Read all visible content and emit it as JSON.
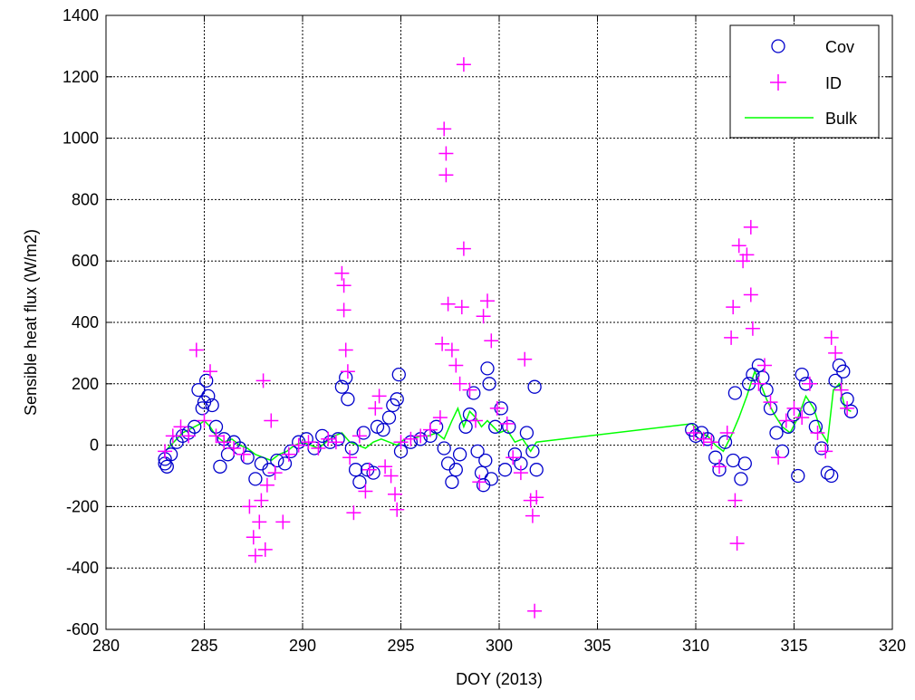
{
  "chart_data": {
    "type": "scatter",
    "xlabel": "DOY (2013)",
    "ylabel": "Sensible heat flux (W/m2)",
    "xlim": [
      280,
      320
    ],
    "ylim": [
      -600,
      1400
    ],
    "xticks": [
      280,
      285,
      290,
      295,
      300,
      305,
      310,
      315,
      320
    ],
    "yticks": [
      -600,
      -400,
      -200,
      0,
      200,
      400,
      600,
      800,
      1000,
      1200,
      1400
    ],
    "grid": true,
    "legend_position": "top-right",
    "series": [
      {
        "name": "Cov",
        "marker": "circle",
        "color": "#0000cc",
        "points": [
          [
            283.0,
            -60
          ],
          [
            283.0,
            -45
          ],
          [
            283.1,
            -70
          ],
          [
            283.3,
            -30
          ],
          [
            283.6,
            10
          ],
          [
            283.9,
            30
          ],
          [
            284.2,
            40
          ],
          [
            284.5,
            60
          ],
          [
            284.7,
            180
          ],
          [
            284.9,
            120
          ],
          [
            285.0,
            140
          ],
          [
            285.1,
            210
          ],
          [
            285.2,
            160
          ],
          [
            285.4,
            130
          ],
          [
            285.6,
            60
          ],
          [
            285.8,
            -70
          ],
          [
            286.0,
            20
          ],
          [
            286.2,
            -30
          ],
          [
            286.5,
            10
          ],
          [
            286.8,
            -10
          ],
          [
            287.2,
            -40
          ],
          [
            287.6,
            -110
          ],
          [
            287.9,
            -60
          ],
          [
            288.3,
            -80
          ],
          [
            288.7,
            -50
          ],
          [
            289.1,
            -60
          ],
          [
            289.4,
            -20
          ],
          [
            289.8,
            10
          ],
          [
            290.2,
            20
          ],
          [
            290.6,
            -10
          ],
          [
            291.0,
            30
          ],
          [
            291.4,
            10
          ],
          [
            291.8,
            20
          ],
          [
            292.0,
            190
          ],
          [
            292.2,
            220
          ],
          [
            292.3,
            150
          ],
          [
            292.5,
            -10
          ],
          [
            292.7,
            -80
          ],
          [
            292.9,
            -120
          ],
          [
            293.1,
            40
          ],
          [
            293.3,
            -80
          ],
          [
            293.6,
            -90
          ],
          [
            293.8,
            60
          ],
          [
            294.1,
            50
          ],
          [
            294.4,
            90
          ],
          [
            294.6,
            130
          ],
          [
            294.8,
            150
          ],
          [
            294.9,
            230
          ],
          [
            295.0,
            -20
          ],
          [
            295.5,
            10
          ],
          [
            296.0,
            20
          ],
          [
            296.5,
            30
          ],
          [
            296.8,
            60
          ],
          [
            297.2,
            -10
          ],
          [
            297.4,
            -60
          ],
          [
            297.6,
            -120
          ],
          [
            297.8,
            -80
          ],
          [
            298.0,
            -30
          ],
          [
            298.3,
            60
          ],
          [
            298.5,
            100
          ],
          [
            298.7,
            170
          ],
          [
            298.9,
            -20
          ],
          [
            299.1,
            -90
          ],
          [
            299.2,
            -130
          ],
          [
            299.3,
            -50
          ],
          [
            299.4,
            250
          ],
          [
            299.5,
            200
          ],
          [
            299.6,
            -110
          ],
          [
            299.8,
            60
          ],
          [
            300.1,
            120
          ],
          [
            300.3,
            -80
          ],
          [
            300.5,
            60
          ],
          [
            300.8,
            -30
          ],
          [
            301.1,
            -60
          ],
          [
            301.4,
            40
          ],
          [
            301.7,
            -20
          ],
          [
            301.8,
            190
          ],
          [
            301.9,
            -80
          ],
          [
            309.8,
            50
          ],
          [
            310.0,
            30
          ],
          [
            310.3,
            40
          ],
          [
            310.6,
            20
          ],
          [
            311.0,
            -40
          ],
          [
            311.2,
            -80
          ],
          [
            311.5,
            10
          ],
          [
            311.9,
            -50
          ],
          [
            312.0,
            170
          ],
          [
            312.3,
            -110
          ],
          [
            312.5,
            -60
          ],
          [
            312.7,
            200
          ],
          [
            312.9,
            230
          ],
          [
            313.2,
            260
          ],
          [
            313.4,
            220
          ],
          [
            313.6,
            180
          ],
          [
            313.8,
            120
          ],
          [
            314.1,
            40
          ],
          [
            314.4,
            -20
          ],
          [
            314.7,
            60
          ],
          [
            315.0,
            100
          ],
          [
            315.2,
            -100
          ],
          [
            315.4,
            230
          ],
          [
            315.6,
            200
          ],
          [
            315.8,
            120
          ],
          [
            316.1,
            60
          ],
          [
            316.4,
            -10
          ],
          [
            316.7,
            -90
          ],
          [
            316.9,
            -100
          ],
          [
            317.1,
            210
          ],
          [
            317.3,
            260
          ],
          [
            317.5,
            240
          ],
          [
            317.7,
            150
          ],
          [
            317.9,
            110
          ]
        ]
      },
      {
        "name": "ID",
        "marker": "plus",
        "color": "#ff00ff",
        "points": [
          [
            283.0,
            -20
          ],
          [
            283.4,
            30
          ],
          [
            283.8,
            60
          ],
          [
            284.2,
            30
          ],
          [
            284.6,
            310
          ],
          [
            285.0,
            80
          ],
          [
            285.3,
            240
          ],
          [
            285.6,
            30
          ],
          [
            286.0,
            10
          ],
          [
            286.5,
            -10
          ],
          [
            287.0,
            -30
          ],
          [
            287.3,
            -200
          ],
          [
            287.5,
            -300
          ],
          [
            287.6,
            -360
          ],
          [
            287.8,
            -250
          ],
          [
            287.9,
            -180
          ],
          [
            288.0,
            210
          ],
          [
            288.1,
            -340
          ],
          [
            288.2,
            -130
          ],
          [
            288.4,
            80
          ],
          [
            288.6,
            -90
          ],
          [
            289.0,
            -250
          ],
          [
            289.3,
            -30
          ],
          [
            289.8,
            0
          ],
          [
            290.3,
            10
          ],
          [
            290.8,
            -10
          ],
          [
            291.3,
            20
          ],
          [
            291.7,
            10
          ],
          [
            292.0,
            560
          ],
          [
            292.1,
            520
          ],
          [
            292.1,
            440
          ],
          [
            292.2,
            310
          ],
          [
            292.3,
            240
          ],
          [
            292.4,
            -40
          ],
          [
            292.6,
            -220
          ],
          [
            292.9,
            30
          ],
          [
            293.2,
            -150
          ],
          [
            293.4,
            -80
          ],
          [
            293.7,
            120
          ],
          [
            293.9,
            160
          ],
          [
            294.2,
            -70
          ],
          [
            294.5,
            -100
          ],
          [
            294.7,
            -160
          ],
          [
            294.8,
            -210
          ],
          [
            295.0,
            10
          ],
          [
            295.5,
            20
          ],
          [
            296.0,
            30
          ],
          [
            296.5,
            50
          ],
          [
            297.0,
            90
          ],
          [
            297.1,
            330
          ],
          [
            297.2,
            1030
          ],
          [
            297.3,
            950
          ],
          [
            297.3,
            880
          ],
          [
            297.4,
            460
          ],
          [
            297.6,
            310
          ],
          [
            297.8,
            260
          ],
          [
            298.0,
            200
          ],
          [
            298.1,
            450
          ],
          [
            298.2,
            1240
          ],
          [
            298.2,
            640
          ],
          [
            298.5,
            180
          ],
          [
            298.8,
            80
          ],
          [
            299.0,
            -120
          ],
          [
            299.2,
            420
          ],
          [
            299.4,
            470
          ],
          [
            299.6,
            340
          ],
          [
            299.9,
            120
          ],
          [
            300.4,
            70
          ],
          [
            300.7,
            -40
          ],
          [
            301.1,
            -90
          ],
          [
            301.3,
            280
          ],
          [
            301.6,
            -180
          ],
          [
            301.7,
            -230
          ],
          [
            301.8,
            -540
          ],
          [
            301.9,
            -170
          ],
          [
            309.9,
            40
          ],
          [
            310.4,
            20
          ],
          [
            310.8,
            10
          ],
          [
            311.2,
            -70
          ],
          [
            311.6,
            40
          ],
          [
            311.8,
            350
          ],
          [
            311.9,
            450
          ],
          [
            312.0,
            -180
          ],
          [
            312.1,
            -320
          ],
          [
            312.2,
            650
          ],
          [
            312.4,
            600
          ],
          [
            312.6,
            620
          ],
          [
            312.8,
            710
          ],
          [
            312.8,
            490
          ],
          [
            312.9,
            380
          ],
          [
            313.2,
            200
          ],
          [
            313.5,
            260
          ],
          [
            313.8,
            140
          ],
          [
            314.2,
            -40
          ],
          [
            314.6,
            80
          ],
          [
            315.0,
            120
          ],
          [
            315.4,
            90
          ],
          [
            315.8,
            200
          ],
          [
            316.2,
            40
          ],
          [
            316.6,
            -20
          ],
          [
            316.9,
            350
          ],
          [
            317.1,
            300
          ],
          [
            317.4,
            180
          ],
          [
            317.7,
            120
          ]
        ]
      },
      {
        "name": "Bulk",
        "marker": "line",
        "color": "#00ff00",
        "points": [
          [
            283.0,
            -20
          ],
          [
            283.3,
            0
          ],
          [
            283.6,
            20
          ],
          [
            283.9,
            40
          ],
          [
            284.2,
            50
          ],
          [
            284.5,
            60
          ],
          [
            284.8,
            70
          ],
          [
            285.0,
            80
          ],
          [
            285.3,
            60
          ],
          [
            285.6,
            30
          ],
          [
            286.0,
            10
          ],
          [
            286.4,
            20
          ],
          [
            286.8,
            0
          ],
          [
            287.2,
            -10
          ],
          [
            287.6,
            -30
          ],
          [
            288.0,
            -40
          ],
          [
            288.4,
            -50
          ],
          [
            288.8,
            -30
          ],
          [
            289.2,
            -20
          ],
          [
            289.6,
            0
          ],
          [
            290.0,
            10
          ],
          [
            290.4,
            0
          ],
          [
            290.8,
            -10
          ],
          [
            291.2,
            10
          ],
          [
            291.6,
            30
          ],
          [
            292.0,
            40
          ],
          [
            292.4,
            10
          ],
          [
            292.8,
            0
          ],
          [
            293.2,
            -10
          ],
          [
            293.6,
            10
          ],
          [
            294.0,
            20
          ],
          [
            294.4,
            10
          ],
          [
            294.8,
            0
          ],
          [
            295.2,
            20
          ],
          [
            295.6,
            20
          ],
          [
            296.0,
            30
          ],
          [
            296.4,
            30
          ],
          [
            296.8,
            40
          ],
          [
            297.2,
            20
          ],
          [
            297.6,
            80
          ],
          [
            297.9,
            120
          ],
          [
            298.2,
            60
          ],
          [
            298.5,
            110
          ],
          [
            298.8,
            90
          ],
          [
            299.1,
            60
          ],
          [
            299.4,
            80
          ],
          [
            299.7,
            60
          ],
          [
            300.0,
            40
          ],
          [
            300.4,
            50
          ],
          [
            300.8,
            10
          ],
          [
            301.2,
            20
          ],
          [
            301.6,
            -20
          ],
          [
            301.9,
            10
          ],
          [
            309.8,
            70
          ],
          [
            310.2,
            40
          ],
          [
            310.6,
            30
          ],
          [
            311.0,
            0
          ],
          [
            311.4,
            -20
          ],
          [
            311.8,
            30
          ],
          [
            312.2,
            90
          ],
          [
            312.6,
            160
          ],
          [
            313.0,
            240
          ],
          [
            313.3,
            200
          ],
          [
            313.6,
            150
          ],
          [
            314.0,
            100
          ],
          [
            314.4,
            60
          ],
          [
            314.8,
            40
          ],
          [
            315.2,
            90
          ],
          [
            315.6,
            160
          ],
          [
            316.0,
            120
          ],
          [
            316.4,
            40
          ],
          [
            316.7,
            10
          ],
          [
            317.0,
            180
          ],
          [
            317.3,
            200
          ],
          [
            317.6,
            120
          ],
          [
            317.9,
            110
          ]
        ]
      }
    ]
  }
}
